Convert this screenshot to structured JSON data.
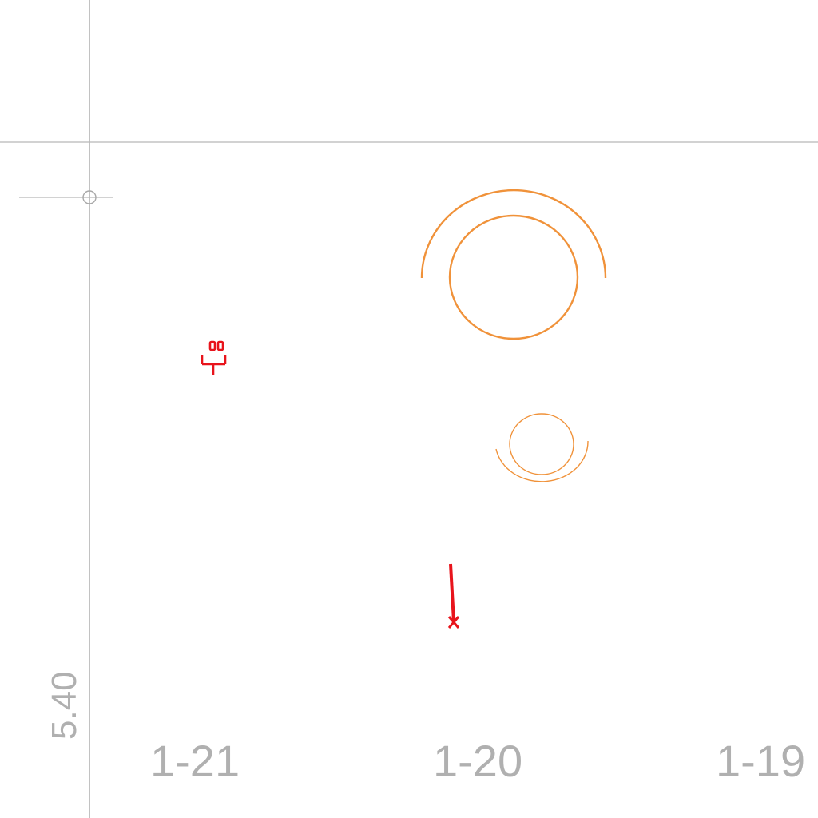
{
  "drawing": {
    "grid_labels": {
      "left": "1-21",
      "center": "1-20",
      "right": "1-19"
    },
    "dimension_label": "5.40",
    "colors": {
      "grid": "#a8a8a8",
      "label": "#b0b0b0",
      "fixture_outline": "#f0923a",
      "symbol": "#e8141c"
    },
    "symbols": {
      "fixture_large": "circular-fixture-icon",
      "fixture_small": "circular-fixture-icon",
      "electrical": "outlet-symbol-icon",
      "pipe": "pipe-marker-icon",
      "control_point": "crosshair-marker-icon"
    }
  }
}
